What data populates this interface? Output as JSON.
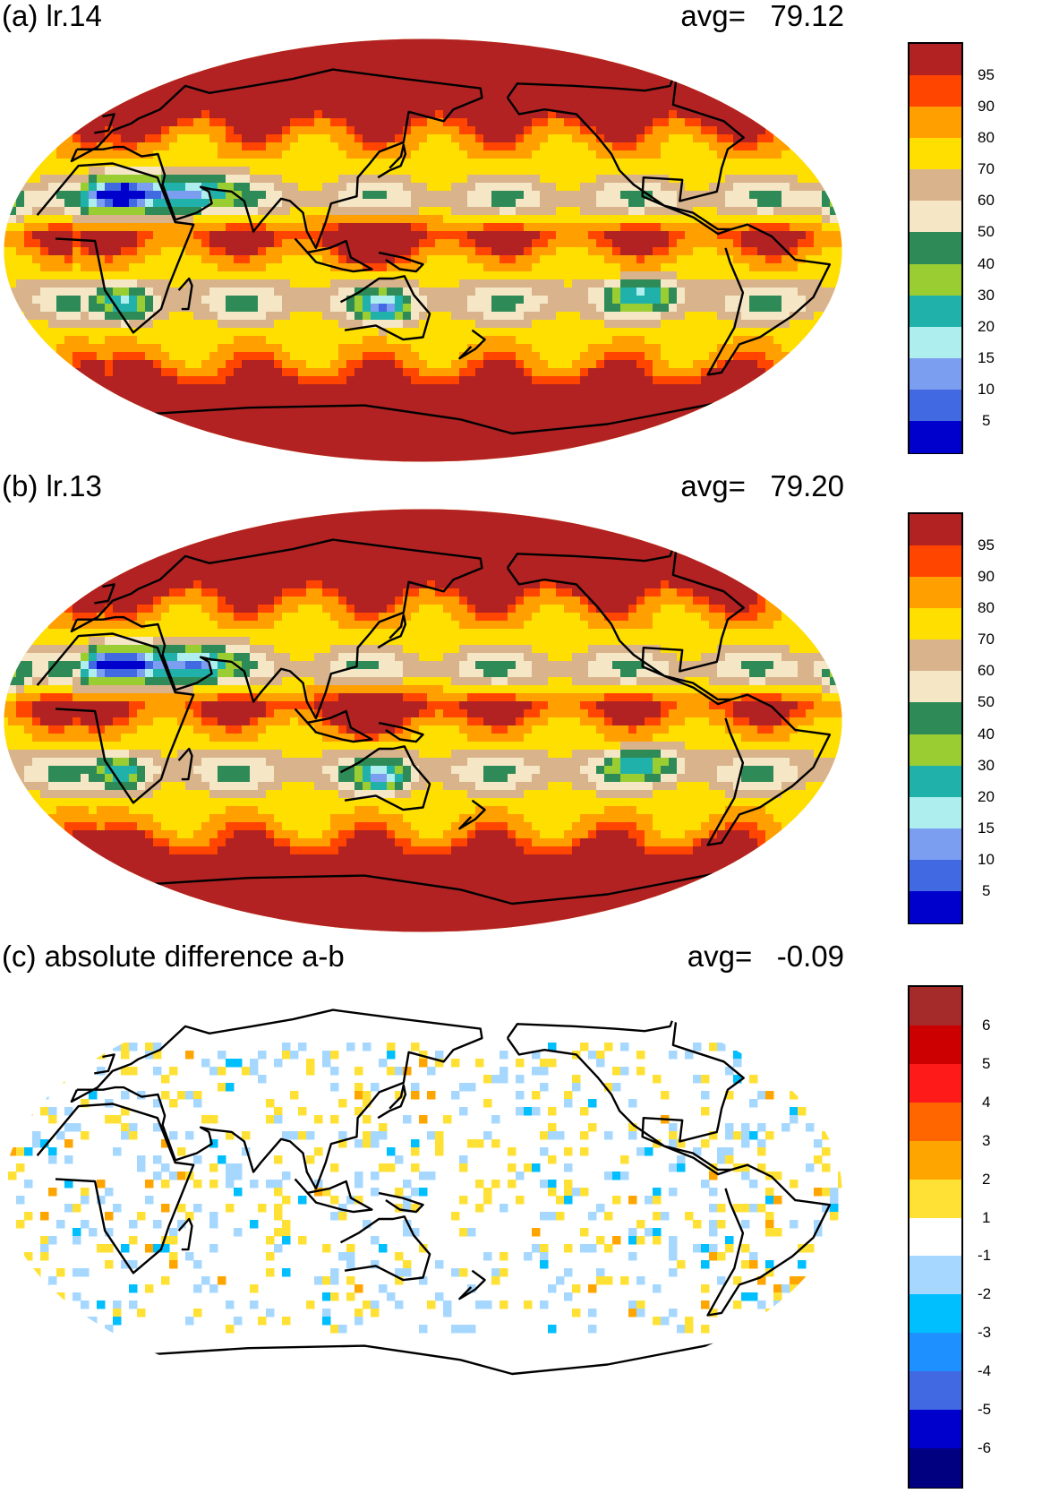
{
  "panels": [
    {
      "title": "(a) lr.14",
      "avg": "avg=   79.12",
      "map_type": "continuous",
      "legend_levels": [
        "95",
        "90",
        "80",
        "70",
        "60",
        "50",
        "40",
        "30",
        "20",
        "15",
        "10",
        "5"
      ],
      "legend_colors": [
        "#b22222",
        "#ff4500",
        "#ff9f00",
        "#ffdf00",
        "#d9b38c",
        "#f5e6c6",
        "#2e8b57",
        "#9acd32",
        "#20b2aa",
        "#afeeee",
        "#7b9ef0",
        "#4169e1",
        "#0000cd"
      ],
      "background_color": "#ff9f00"
    },
    {
      "title": "(b) lr.13",
      "avg": "avg=   79.20",
      "map_type": "continuous",
      "legend_levels": [
        "95",
        "90",
        "80",
        "70",
        "60",
        "50",
        "40",
        "30",
        "20",
        "15",
        "10",
        "5"
      ],
      "legend_colors": [
        "#b22222",
        "#ff4500",
        "#ff9f00",
        "#ffdf00",
        "#d9b38c",
        "#f5e6c6",
        "#2e8b57",
        "#9acd32",
        "#20b2aa",
        "#afeeee",
        "#7b9ef0",
        "#4169e1",
        "#0000cd"
      ],
      "background_color": "#ff9f00"
    },
    {
      "title": "(c) absolute difference a-b",
      "avg": "avg=   -0.09",
      "map_type": "difference",
      "legend_levels": [
        "6",
        "5",
        "4",
        "3",
        "2",
        "1",
        "-1",
        "-2",
        "-3",
        "-4",
        "-5",
        "-6"
      ],
      "legend_colors": [
        "#a52a2a",
        "#cc0000",
        "#ff1a1a",
        "#ff6600",
        "#ffa500",
        "#ffe135",
        "#ffffff",
        "#a6d8ff",
        "#00bfff",
        "#1e90ff",
        "#4169e1",
        "#0000cd",
        "#000080"
      ],
      "background_color": "#ffffff"
    }
  ]
}
